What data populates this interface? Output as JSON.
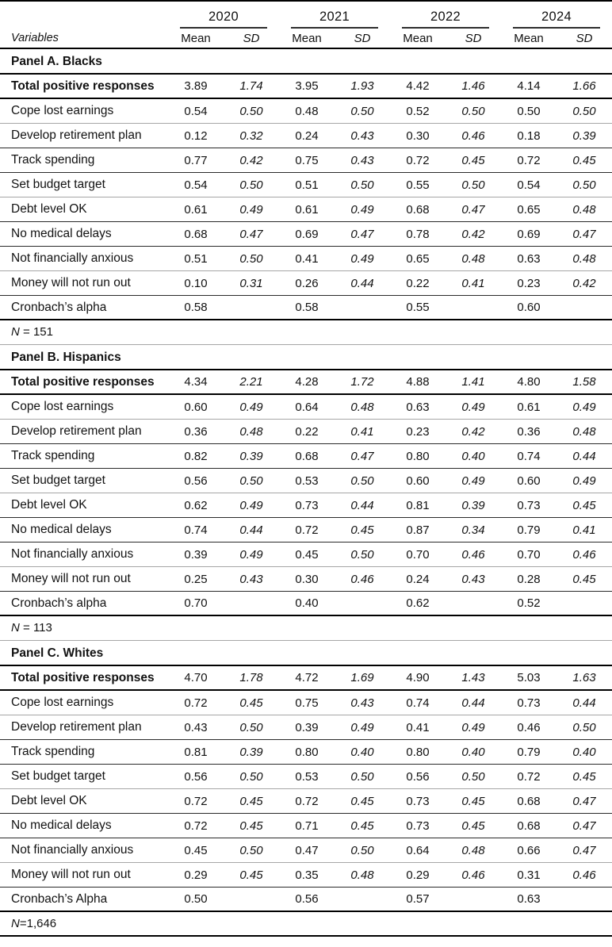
{
  "table": {
    "variables_label": "Variables",
    "year_groups": [
      {
        "year": "2020",
        "mean_label": "Mean",
        "sd_label": "SD"
      },
      {
        "year": "2021",
        "mean_label": "Mean",
        "sd_label": "SD"
      },
      {
        "year": "2022",
        "mean_label": "Mean",
        "sd_label": "SD"
      },
      {
        "year": "2024",
        "mean_label": "Mean",
        "sd_label": "SD"
      }
    ],
    "panels": [
      {
        "title": "Panel A. Blacks",
        "n_label": "N = 151",
        "rows": [
          {
            "label": "Total positive responses",
            "bold": true,
            "values": [
              "3.89",
              "1.74",
              "3.95",
              "1.93",
              "4.42",
              "1.46",
              "4.14",
              "1.66"
            ]
          },
          {
            "label": "Cope lost earnings",
            "values": [
              "0.54",
              "0.50",
              "0.48",
              "0.50",
              "0.52",
              "0.50",
              "0.50",
              "0.50"
            ]
          },
          {
            "label": "Develop retirement plan",
            "values": [
              "0.12",
              "0.32",
              "0.24",
              "0.43",
              "0.30",
              "0.46",
              "0.18",
              "0.39"
            ]
          },
          {
            "label": "Track spending",
            "values": [
              "0.77",
              "0.42",
              "0.75",
              "0.43",
              "0.72",
              "0.45",
              "0.72",
              "0.45"
            ]
          },
          {
            "label": "Set budget target",
            "values": [
              "0.54",
              "0.50",
              "0.51",
              "0.50",
              "0.55",
              "0.50",
              "0.54",
              "0.50"
            ]
          },
          {
            "label": "Debt level OK",
            "values": [
              "0.61",
              "0.49",
              "0.61",
              "0.49",
              "0.68",
              "0.47",
              "0.65",
              "0.48"
            ]
          },
          {
            "label": "No medical delays",
            "values": [
              "0.68",
              "0.47",
              "0.69",
              "0.47",
              "0.78",
              "0.42",
              "0.69",
              "0.47"
            ]
          },
          {
            "label": "Not financially anxious",
            "values": [
              "0.51",
              "0.50",
              "0.41",
              "0.49",
              "0.65",
              "0.48",
              "0.63",
              "0.48"
            ]
          },
          {
            "label": "Money will not run out",
            "values": [
              "0.10",
              "0.31",
              "0.26",
              "0.44",
              "0.22",
              "0.41",
              "0.23",
              "0.42"
            ]
          },
          {
            "label": "Cronbach’s alpha",
            "values": [
              "0.58",
              "",
              "0.58",
              "",
              "0.55",
              "",
              "0.60",
              ""
            ]
          }
        ]
      },
      {
        "title": "Panel B. Hispanics",
        "n_label": "N = 113",
        "rows": [
          {
            "label": "Total positive responses",
            "bold": true,
            "values": [
              "4.34",
              "2.21",
              "4.28",
              "1.72",
              "4.88",
              "1.41",
              "4.80",
              "1.58"
            ]
          },
          {
            "label": "Cope lost earnings",
            "values": [
              "0.60",
              "0.49",
              "0.64",
              "0.48",
              "0.63",
              "0.49",
              "0.61",
              "0.49"
            ]
          },
          {
            "label": "Develop retirement plan",
            "values": [
              "0.36",
              "0.48",
              "0.22",
              "0.41",
              "0.23",
              "0.42",
              "0.36",
              "0.48"
            ]
          },
          {
            "label": "Track spending",
            "values": [
              "0.82",
              "0.39",
              "0.68",
              "0.47",
              "0.80",
              "0.40",
              "0.74",
              "0.44"
            ]
          },
          {
            "label": "Set budget target",
            "values": [
              "0.56",
              "0.50",
              "0.53",
              "0.50",
              "0.60",
              "0.49",
              "0.60",
              "0.49"
            ]
          },
          {
            "label": "Debt level OK",
            "values": [
              "0.62",
              "0.49",
              "0.73",
              "0.44",
              "0.81",
              "0.39",
              "0.73",
              "0.45"
            ]
          },
          {
            "label": "No medical delays",
            "values": [
              "0.74",
              "0.44",
              "0.72",
              "0.45",
              "0.87",
              "0.34",
              "0.79",
              "0.41"
            ]
          },
          {
            "label": "Not financially anxious",
            "values": [
              "0.39",
              "0.49",
              "0.45",
              "0.50",
              "0.70",
              "0.46",
              "0.70",
              "0.46"
            ]
          },
          {
            "label": "Money will not run out",
            "values": [
              "0.25",
              "0.43",
              "0.30",
              "0.46",
              "0.24",
              "0.43",
              "0.28",
              "0.45"
            ]
          },
          {
            "label": "Cronbach’s alpha",
            "values": [
              "0.70",
              "",
              "0.40",
              "",
              "0.62",
              "",
              "0.52",
              ""
            ]
          }
        ]
      },
      {
        "title": "Panel C. Whites",
        "n_label": "N=1,646",
        "rows": [
          {
            "label": "Total positive responses",
            "bold": true,
            "values": [
              "4.70",
              "1.78",
              "4.72",
              "1.69",
              "4.90",
              "1.43",
              "5.03",
              "1.63"
            ]
          },
          {
            "label": "Cope lost earnings",
            "values": [
              "0.72",
              "0.45",
              "0.75",
              "0.43",
              "0.74",
              "0.44",
              "0.73",
              "0.44"
            ]
          },
          {
            "label": "Develop retirement plan",
            "values": [
              "0.43",
              "0.50",
              "0.39",
              "0.49",
              "0.41",
              "0.49",
              "0.46",
              "0.50"
            ]
          },
          {
            "label": "Track spending",
            "values": [
              "0.81",
              "0.39",
              "0.80",
              "0.40",
              "0.80",
              "0.40",
              "0.79",
              "0.40"
            ]
          },
          {
            "label": "Set budget target",
            "values": [
              "0.56",
              "0.50",
              "0.53",
              "0.50",
              "0.56",
              "0.50",
              "0.72",
              "0.45"
            ]
          },
          {
            "label": "Debt level OK",
            "values": [
              "0.72",
              "0.45",
              "0.72",
              "0.45",
              "0.73",
              "0.45",
              "0.68",
              "0.47"
            ]
          },
          {
            "label": "No medical delays",
            "values": [
              "0.72",
              "0.45",
              "0.71",
              "0.45",
              "0.73",
              "0.45",
              "0.68",
              "0.47"
            ]
          },
          {
            "label": "Not financially anxious",
            "values": [
              "0.45",
              "0.50",
              "0.47",
              "0.50",
              "0.64",
              "0.48",
              "0.66",
              "0.47"
            ]
          },
          {
            "label": "Money will not run out",
            "values": [
              "0.29",
              "0.45",
              "0.35",
              "0.48",
              "0.29",
              "0.46",
              "0.31",
              "0.46"
            ]
          },
          {
            "label": "Cronbach’s Alpha",
            "values": [
              "0.50",
              "",
              "0.56",
              "",
              "0.57",
              "",
              "0.63",
              ""
            ]
          }
        ]
      }
    ]
  }
}
